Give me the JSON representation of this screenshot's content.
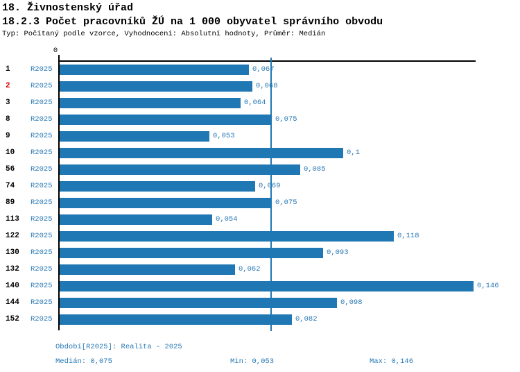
{
  "header": {
    "title": "18. Živnostenský úřad",
    "subtitle": "18.2.3 Počet pracovníků ŽÚ na 1 000 obyvatel správního obvodu",
    "meta": "Typ: Počítaný podle vzorce, Vyhodnocení: Absolutní hodnoty, Průměr: Medián"
  },
  "chart_data": {
    "type": "bar",
    "orientation": "horizontal",
    "title": "18.2.3 Počet pracovníků ŽÚ na 1 000 obyvatel správního obvodu",
    "axis_zero_label": "0",
    "series_name": "R2025",
    "categories": [
      "1",
      "2",
      "3",
      "8",
      "9",
      "10",
      "56",
      "74",
      "89",
      "113",
      "122",
      "130",
      "132",
      "140",
      "144",
      "152"
    ],
    "values": [
      0.067,
      0.068,
      0.064,
      0.075,
      0.053,
      0.1,
      0.085,
      0.069,
      0.075,
      0.054,
      0.118,
      0.093,
      0.062,
      0.146,
      0.098,
      0.082
    ],
    "value_labels": [
      "0,067",
      "0,068",
      "0,064",
      "0,075",
      "0,053",
      "0,1",
      "0,085",
      "0,069",
      "0,075",
      "0,054",
      "0,118",
      "0,093",
      "0,062",
      "0,146",
      "0,098",
      "0,082"
    ],
    "highlighted_index": 1,
    "median_line_value": 0.075,
    "xlim": [
      0,
      0.1467
    ],
    "legend_position": "bottom",
    "grid": false,
    "colors": {
      "bar": "#1f77b4",
      "blue_text": "#2878b5",
      "highlight_red": "#d40000",
      "axis": "#000000"
    }
  },
  "footer": {
    "period": "Období[R2025]: Realita - 2025",
    "median": "Medián: 0,075",
    "min": "Min: 0,053",
    "max": "Max: 0,146"
  }
}
